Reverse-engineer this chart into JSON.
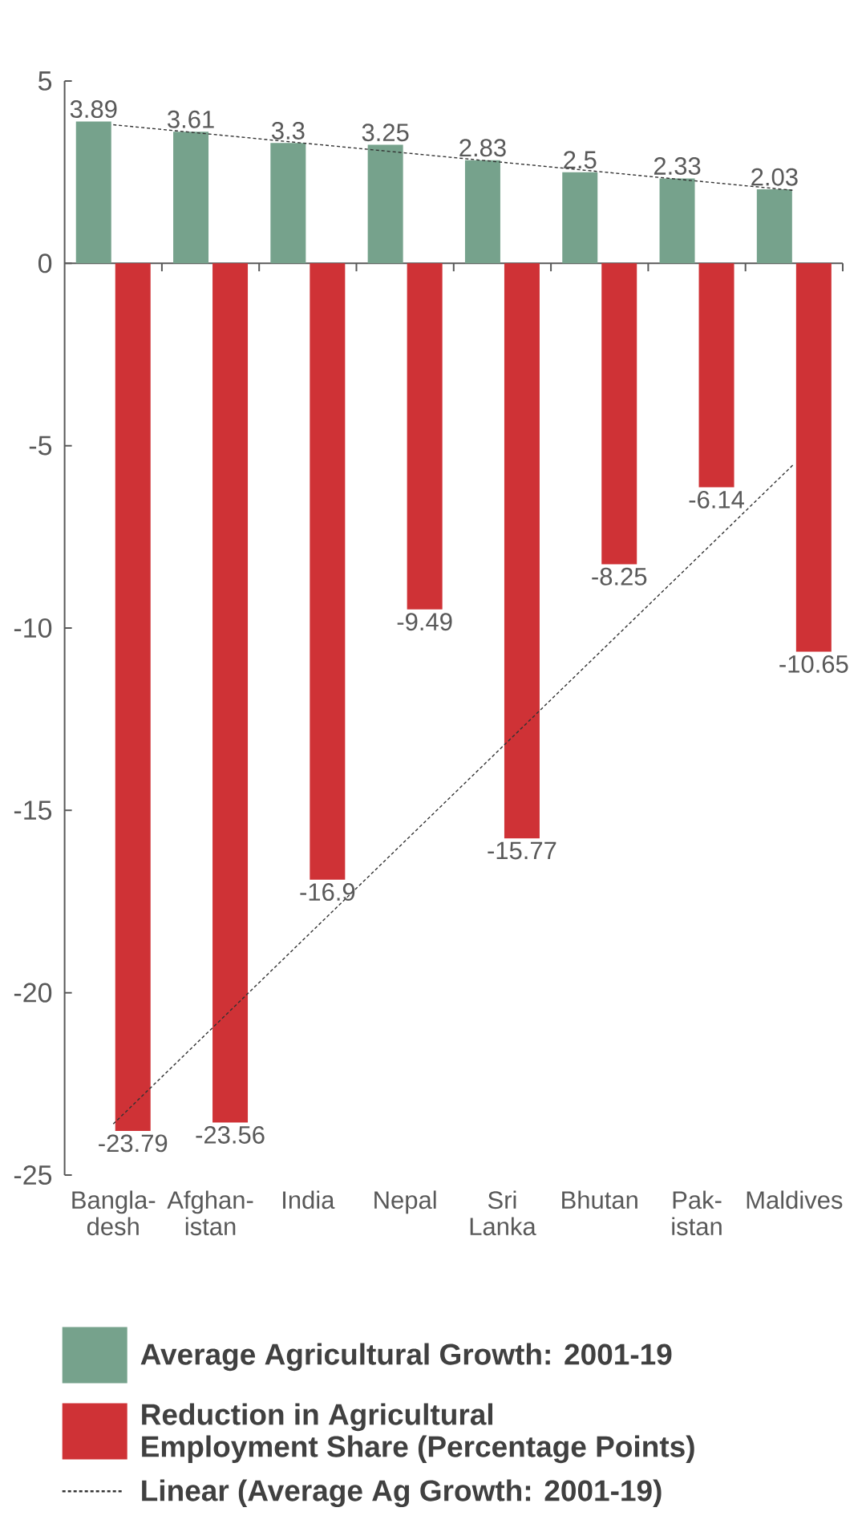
{
  "chart_data": {
    "type": "bar",
    "categories": [
      "Bangla-\ndesh",
      "Afghan-\nistan",
      "India",
      "Nepal",
      "Sri\nLanka",
      "Bhutan",
      "Pak-\nistan",
      "Maldives"
    ],
    "series": [
      {
        "name": "Average Agricultural Growth: 2001-19",
        "color": "#76a28c",
        "values": [
          3.89,
          3.61,
          3.3,
          3.25,
          2.83,
          2.5,
          2.33,
          2.03
        ],
        "value_labels": [
          "3.89",
          "3.61",
          "3.3",
          "3.25",
          "2.83",
          "2.5",
          "2.33",
          "2.03"
        ]
      },
      {
        "name": "Reduction in Agricultural\nEmployment Share (Percentage Points)",
        "color": "#cf3236",
        "values": [
          -23.79,
          -23.56,
          -16.9,
          -9.49,
          -15.77,
          -8.25,
          -6.14,
          -10.65
        ],
        "value_labels": [
          "-23.79",
          "-23.56",
          "-16.9",
          "-9.49",
          "-15.77",
          "-8.25",
          "-6.14",
          "-10.65"
        ]
      },
      {
        "name": "Linear (Average Ag Growth: 2001-19)",
        "type": "line",
        "color": "#333333",
        "x": [
          "Bangla-\ndesh",
          "Maldives"
        ],
        "values": [
          3.8,
          2.0
        ]
      },
      {
        "type": "line",
        "color": "#333333",
        "x": [
          "Bangla-\ndesh",
          "Maldives"
        ],
        "values": [
          -23.6,
          -5.5
        ]
      }
    ],
    "ylim": [
      -25,
      5
    ],
    "yticks": [
      -25,
      -20,
      -15,
      -10,
      -5,
      0,
      5
    ],
    "legend": "bottom",
    "line_style": "dashed",
    "marker": "none"
  }
}
